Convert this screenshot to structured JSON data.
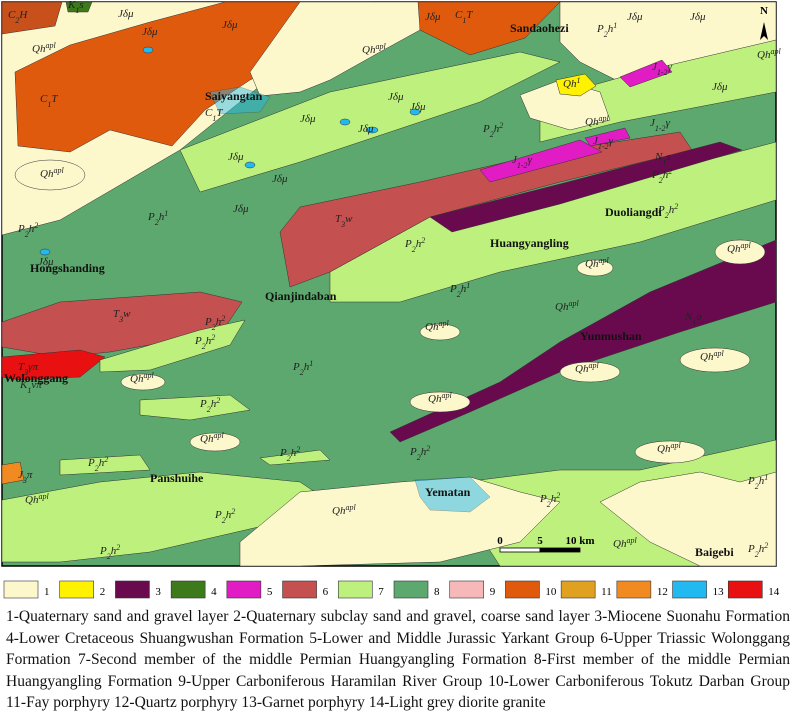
{
  "map": {
    "north": "N",
    "place_names": [
      "Sandaohezi",
      "Saiyangtan",
      "Hongshanding",
      "Qianjindaban",
      "Huangyangling",
      "Duoliangdi",
      "Yunmushan",
      "Wolonggang",
      "Panshuihe",
      "Yematan",
      "Baigebi"
    ],
    "unit_labels": [
      {
        "t": "C",
        "sub": "2",
        "r": "H"
      },
      {
        "t": "K",
        "sub": "1",
        "r": "s"
      },
      {
        "t": "C",
        "sub": "1",
        "r": "T"
      },
      {
        "t": "C",
        "sub": "1",
        "r": "T"
      },
      {
        "t": "C",
        "sub": "1",
        "r": "T"
      },
      {
        "t": "Qh",
        "sup": "apl"
      },
      {
        "t": "Qh",
        "sup": "apl"
      },
      {
        "t": "Qh",
        "sup": "apl"
      },
      {
        "t": "Qh",
        "sup": "apl"
      },
      {
        "t": "Qh",
        "sup": "apl"
      },
      {
        "t": "Qh",
        "sup": "apl"
      },
      {
        "t": "Qh",
        "sup": "apl"
      },
      {
        "t": "Qh",
        "sup": "apl"
      },
      {
        "t": "Qh",
        "sup": "apl"
      },
      {
        "t": "Qh",
        "sup": "apl"
      },
      {
        "t": "Qh",
        "sup": "apl"
      },
      {
        "t": "Qh",
        "sup": "apl"
      },
      {
        "t": "Qh",
        "sup": "apl"
      },
      {
        "t": "Qh",
        "sup": "apl"
      },
      {
        "t": "Qh",
        "sup": "apl"
      },
      {
        "t": "Qh",
        "sup": "apl"
      },
      {
        "t": "Qh",
        "sup": "apl"
      },
      {
        "t": "Qh",
        "sup": "apl"
      },
      {
        "t": "Qh",
        "sup": "1"
      },
      {
        "t": "Jδμ"
      },
      {
        "t": "Jδμ"
      },
      {
        "t": "Jδμ"
      },
      {
        "t": "Jδμ"
      },
      {
        "t": "Jδμ"
      },
      {
        "t": "Jδμ"
      },
      {
        "t": "Jδμ"
      },
      {
        "t": "Jδμ"
      },
      {
        "t": "Jδμ"
      },
      {
        "t": "Jδμ"
      },
      {
        "t": "Jδμ"
      },
      {
        "t": "Jδμ"
      },
      {
        "t": "Jδμ"
      },
      {
        "t": "Jδμ"
      },
      {
        "t": "Jδμ"
      },
      {
        "t": "J",
        "sub": "1-2",
        "r": "γ"
      },
      {
        "t": "J",
        "sub": "1-2",
        "r": "γ"
      },
      {
        "t": "J",
        "sub": "1-2",
        "r": "γ"
      },
      {
        "t": "J",
        "sub": "1-2",
        "r": "γ"
      },
      {
        "t": "N",
        "sub": "1",
        "r": "s"
      },
      {
        "t": "N",
        "sub": "1",
        "r": "σ"
      },
      {
        "t": "T",
        "sub": "3",
        "r": "w"
      },
      {
        "t": "T",
        "sub": "3",
        "r": "w"
      },
      {
        "t": "T",
        "sub": "3",
        "r": "γπ"
      },
      {
        "t": "K",
        "sub": "1",
        "r": "vπ"
      },
      {
        "t": "J",
        "sub": "3",
        "r": "π"
      },
      {
        "t": "P",
        "sub": "2",
        "r": "h",
        "sup": "1"
      },
      {
        "t": "P",
        "sub": "2",
        "r": "h",
        "sup": "1"
      },
      {
        "t": "P",
        "sub": "2",
        "r": "h",
        "sup": "1"
      },
      {
        "t": "P",
        "sub": "2",
        "r": "h",
        "sup": "1"
      },
      {
        "t": "P",
        "sub": "2",
        "r": "h",
        "sup": "1"
      },
      {
        "t": "P",
        "sub": "2",
        "r": "h",
        "sup": "2"
      },
      {
        "t": "P",
        "sub": "2",
        "r": "h",
        "sup": "2"
      },
      {
        "t": "P",
        "sub": "2",
        "r": "h",
        "sup": "2"
      },
      {
        "t": "P",
        "sub": "2",
        "r": "h",
        "sup": "2"
      },
      {
        "t": "P",
        "sub": "2",
        "r": "h",
        "sup": "2"
      },
      {
        "t": "P",
        "sub": "2",
        "r": "h",
        "sup": "2"
      },
      {
        "t": "P",
        "sub": "2",
        "r": "h",
        "sup": "2"
      },
      {
        "t": "P",
        "sub": "2",
        "r": "h",
        "sup": "2"
      },
      {
        "t": "P",
        "sub": "2",
        "r": "h",
        "sup": "2"
      },
      {
        "t": "P",
        "sub": "2",
        "r": "h",
        "sup": "2"
      },
      {
        "t": "P",
        "sub": "2",
        "r": "h",
        "sup": "2"
      },
      {
        "t": "P",
        "sub": "2",
        "r": "h",
        "sup": "2"
      },
      {
        "t": "P",
        "sub": "2",
        "r": "h",
        "sup": "2"
      },
      {
        "t": "P",
        "sub": "2",
        "r": "h",
        "sup": "2"
      },
      {
        "t": "P",
        "sub": "2",
        "r": "h",
        "sup": "2"
      }
    ],
    "scale_labels": [
      "0",
      "5",
      "10 km"
    ],
    "legend": {
      "items": [
        {
          "number": "1",
          "color": "#fdf8cc"
        },
        {
          "number": "2",
          "color": "#fff200"
        },
        {
          "number": "3",
          "color": "#6a0a4e"
        },
        {
          "number": "4",
          "color": "#3c7a1c"
        },
        {
          "number": "5",
          "color": "#e21cc4"
        },
        {
          "number": "6",
          "color": "#c45050"
        },
        {
          "number": "7",
          "color": "#bdf07c"
        },
        {
          "number": "8",
          "color": "#5ca86e"
        },
        {
          "number": "9",
          "color": "#f6b8b8"
        },
        {
          "number": "10",
          "color": "#e05a0e"
        },
        {
          "number": "11",
          "color": "#e0a020"
        },
        {
          "number": "12",
          "color": "#f28a22"
        },
        {
          "number": "13",
          "color": "#22b8f0"
        },
        {
          "number": "14",
          "color": "#e81010"
        }
      ],
      "caption": "1-Quaternary sand and gravel layer 2-Quaternary subclay sand and gravel, coarse sand layer 3-Miocene Suonahu Formation 4-Lower Cretaceous Shuangwushan Formation 5-Lower and Middle Jurassic Yarkant Group 6-Upper Triassic Wolonggang Formation 7-Second member of the middle Permian Huangyangling Formation 8-First member of the middle Permian Huangyangling Formation 9-Upper Carboniferous Haramilan River Group 10-Lower Carboniferous Tokutz Darban Group 11-Fay porphyry 12-Quartz porphyry 13-Garnet porphyry 14-Light grey diorite granite"
    }
  }
}
